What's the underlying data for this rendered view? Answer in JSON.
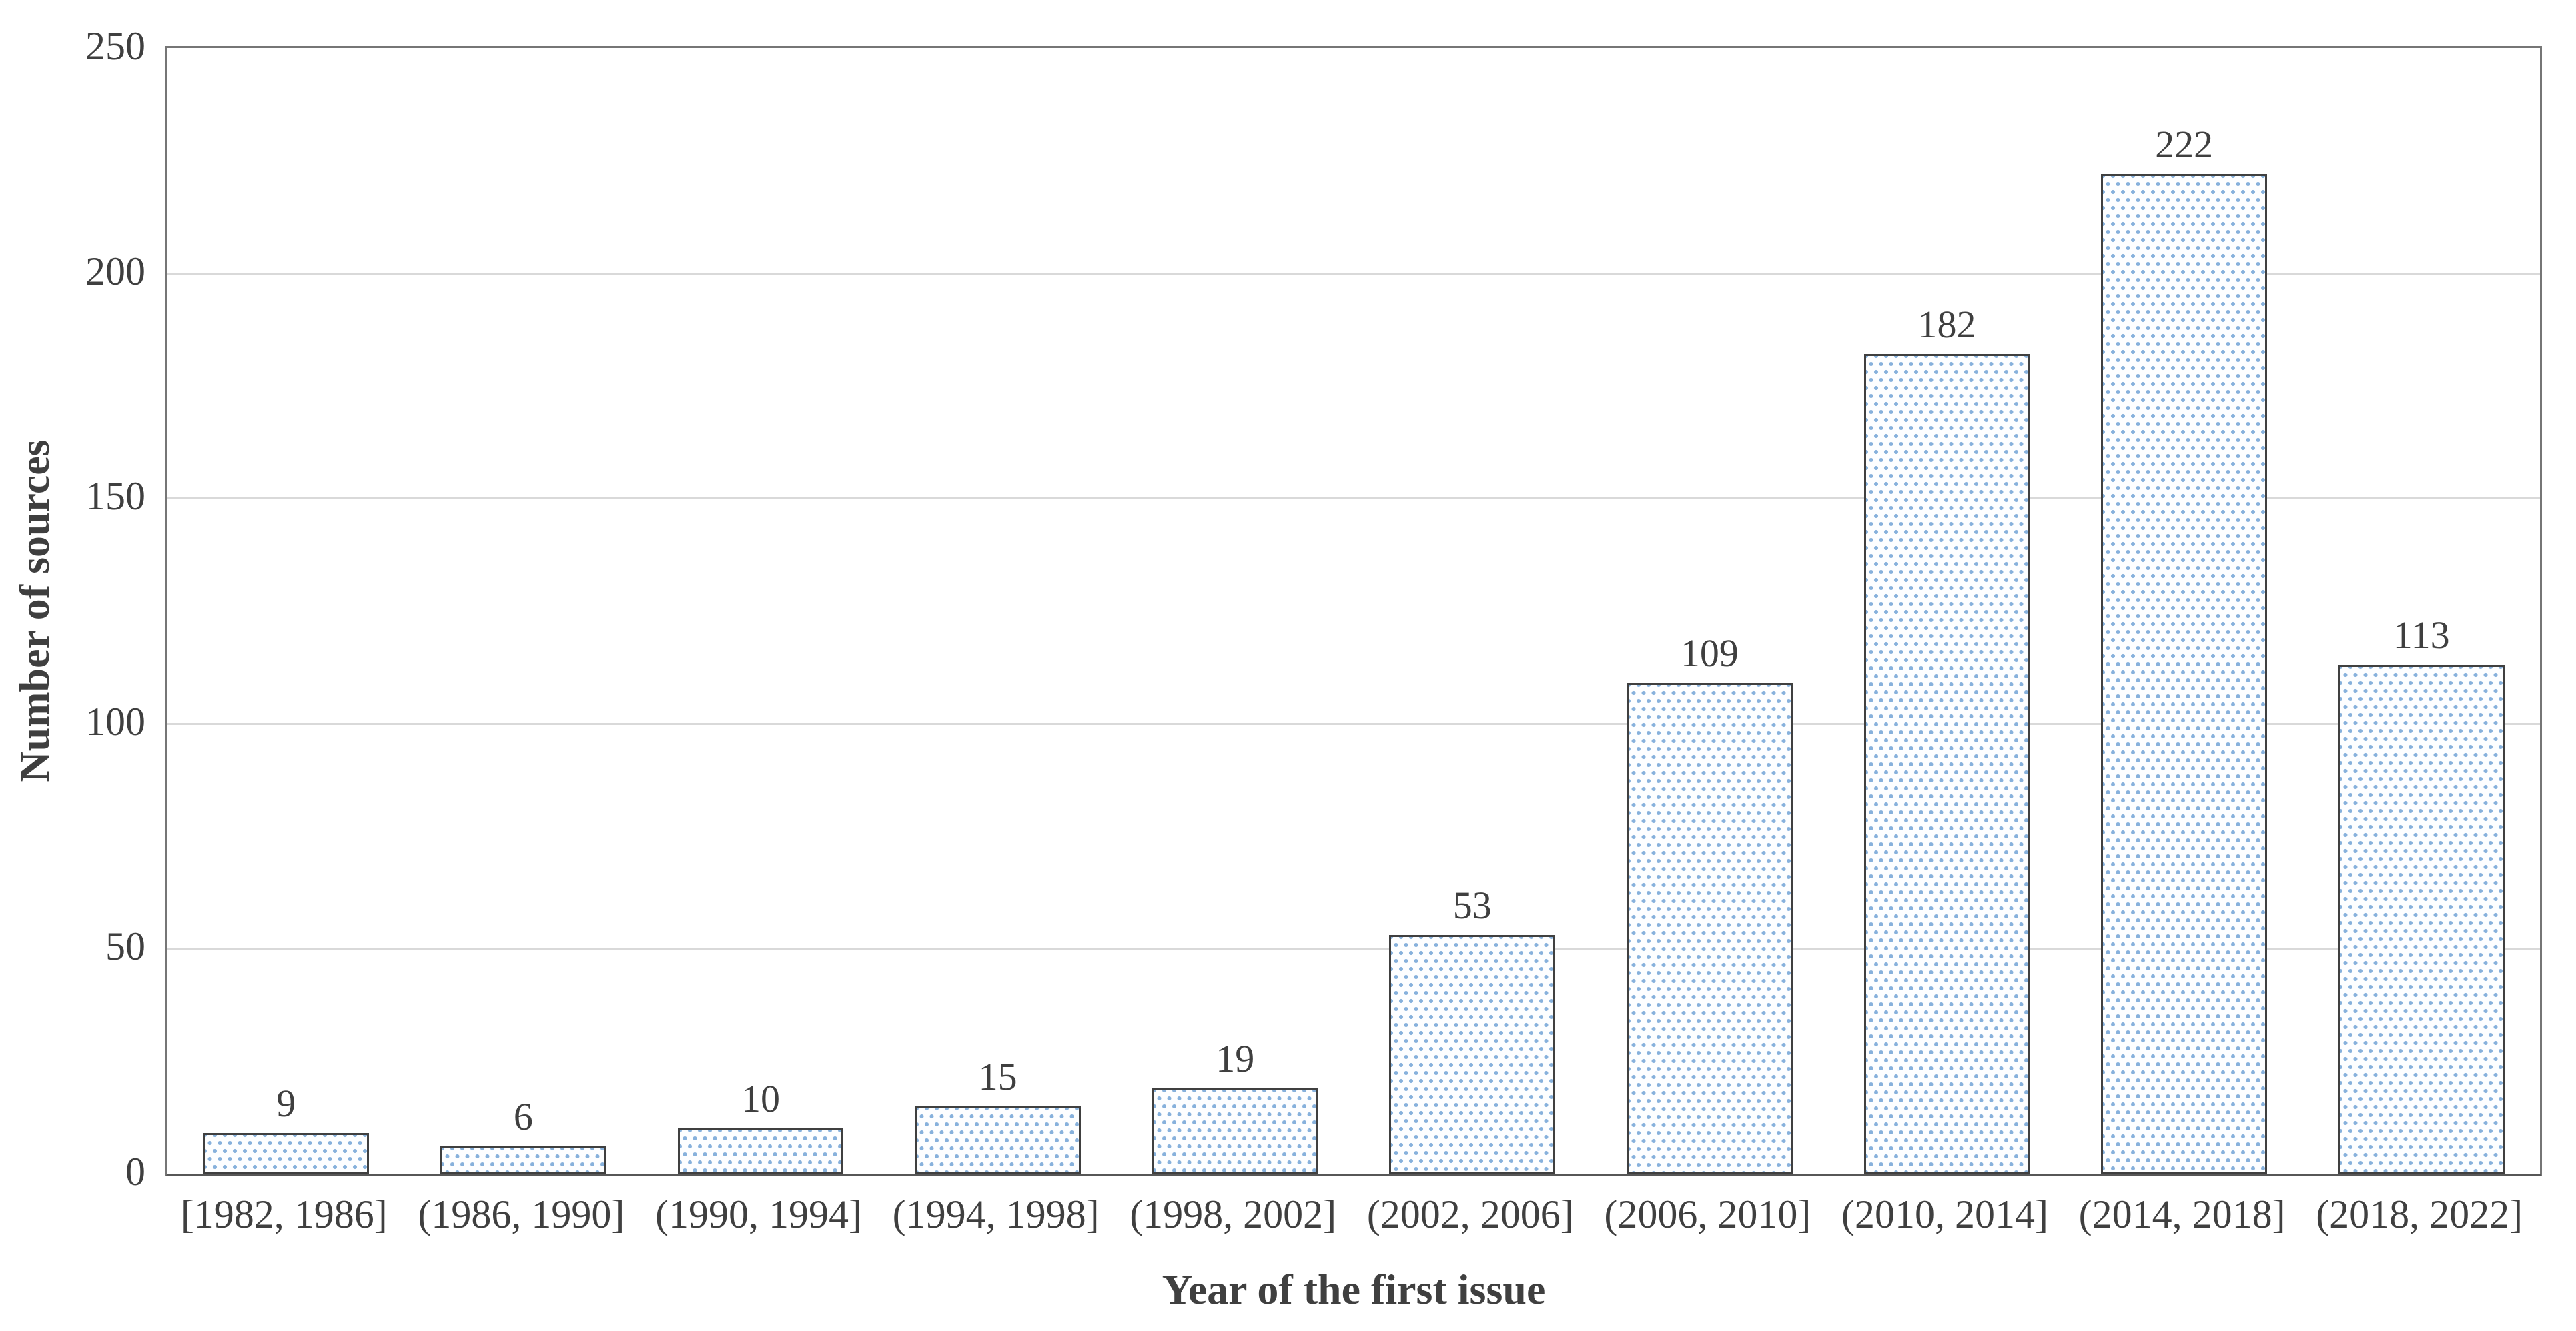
{
  "chart_data": {
    "type": "bar",
    "title": "",
    "xlabel": "Year of the first issue",
    "ylabel": "Number of sources",
    "categories": [
      "[1982, 1986]",
      "(1986, 1990]",
      "(1990, 1994]",
      "(1994, 1998]",
      "(1998, 2002]",
      "(2002, 2006]",
      "(2006, 2010]",
      "(2010, 2014]",
      "(2014, 2018]",
      "(2018, 2022]"
    ],
    "values": [
      9,
      6,
      10,
      15,
      19,
      53,
      109,
      182,
      222,
      113
    ],
    "yticks": [
      0,
      50,
      100,
      150,
      200,
      250
    ],
    "ylim": [
      0,
      250
    ],
    "grid": true,
    "legend_position": "none",
    "bar_width_fraction": 0.7,
    "colors": {
      "bar_fill_base": "#fdfeff",
      "bar_pattern_dot": "#87b1dc",
      "bar_border": "#404040",
      "gridline": "#d9d9d9",
      "plot_border": "#767676",
      "axis_line": "#575757",
      "text": "#3f3f3f"
    }
  }
}
